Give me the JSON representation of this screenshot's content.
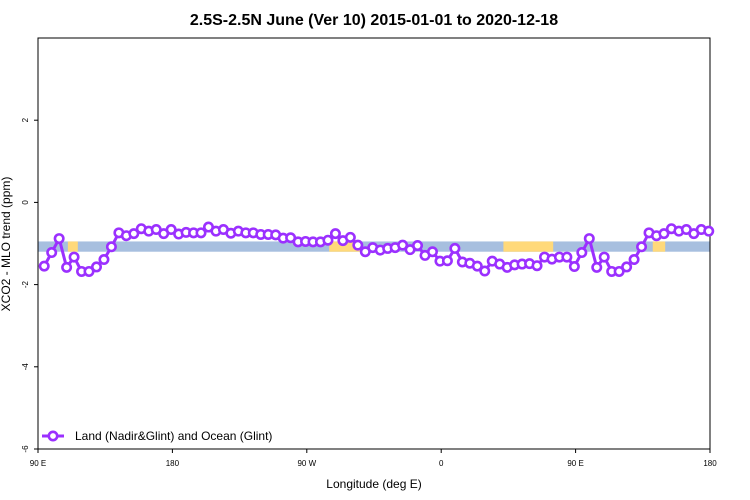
{
  "chart_data": {
    "type": "line",
    "title": "2.5S-2.5N June (Ver 10)   2015-01-01 to 2020-12-18",
    "xlabel": "Longitude (deg E)",
    "ylabel": "XCO2 - MLO trend (ppm)",
    "xlim": [
      -90,
      180
    ],
    "ylim": [
      -6,
      4
    ],
    "x_ticks": [
      {
        "value": -90,
        "label": "90 E"
      },
      {
        "value": -36,
        "label": "180"
      },
      {
        "value": 18,
        "label": "90 W"
      },
      {
        "value": 72,
        "label": "0"
      },
      {
        "value": 126,
        "label": "90 E"
      },
      {
        "value": 180,
        "label": "180"
      }
    ],
    "y_ticks": [
      {
        "value": -6,
        "label": "-6"
      },
      {
        "value": -4,
        "label": "-4"
      },
      {
        "value": -2,
        "label": "-2"
      },
      {
        "value": 0,
        "label": "0"
      },
      {
        "value": 2,
        "label": "2"
      }
    ],
    "legend": {
      "position": "bottom-left"
    },
    "grid": false,
    "colors": {
      "series": "#9B30FF",
      "ocean_band": "#A7BFDF",
      "land_band": "#FFD97A"
    },
    "background_band": {
      "y_range": [
        -1.2,
        -0.95
      ],
      "land_segments": [
        [
          -78,
          -74
        ],
        [
          27,
          40
        ],
        [
          97,
          117
        ],
        [
          157,
          162
        ]
      ]
    },
    "series": [
      {
        "name": "Land (Nadir&Glint) and Ocean (Glint)",
        "x": [
          -87.5,
          -84.5,
          -81.5,
          -78.5,
          -75.5,
          -72.5,
          -69.5,
          -66.5,
          -63.5,
          -60.5,
          -57.5,
          -54.5,
          -51.5,
          -48.5,
          -45.5,
          -42.5,
          -39.5,
          -36.5,
          -33.5,
          -30.5,
          -27.5,
          -24.5,
          -21.5,
          -18.5,
          -15.5,
          -12.5,
          -9.5,
          -6.5,
          -3.5,
          -0.5,
          2.5,
          5.5,
          8.5,
          11.5,
          14.5,
          17.5,
          20.5,
          23.5,
          26.5,
          29.5,
          32.5,
          35.5,
          38.5,
          41.5,
          44.5,
          47.5,
          50.5,
          53.5,
          56.5,
          59.5,
          62.5,
          65.5,
          68.5,
          71.5,
          74.5,
          77.5,
          80.5,
          83.5,
          86.5,
          89.5,
          92.5,
          95.5,
          98.5,
          101.5,
          104.5,
          107.5,
          110.5,
          113.5,
          116.5,
          119.5,
          122.5,
          125.5,
          128.5,
          131.5,
          134.5,
          137.5,
          140.5,
          143.5,
          146.5,
          149.5,
          152.5,
          155.5,
          158.5,
          161.5,
          164.5,
          167.5,
          170.5,
          173.5,
          176.5,
          179.5
        ],
        "y": [
          -1.55,
          -1.22,
          -0.88,
          -1.58,
          -1.33,
          -1.68,
          -1.68,
          -1.57,
          -1.39,
          -1.08,
          -0.74,
          -0.81,
          -0.76,
          -0.64,
          -0.7,
          -0.66,
          -0.76,
          -0.66,
          -0.77,
          -0.73,
          -0.74,
          -0.74,
          -0.6,
          -0.7,
          -0.66,
          -0.75,
          -0.7,
          -0.74,
          -0.74,
          -0.78,
          -0.78,
          -0.79,
          -0.87,
          -0.86,
          -0.96,
          -0.95,
          -0.96,
          -0.96,
          -0.92,
          -0.76,
          -0.93,
          -0.85,
          -1.04,
          -1.2,
          -1.1,
          -1.16,
          -1.12,
          -1.1,
          -1.04,
          -1.15,
          -1.05,
          -1.29,
          -1.2,
          -1.43,
          -1.42,
          -1.12,
          -1.45,
          -1.48,
          -1.55,
          -1.67,
          -1.43,
          -1.5,
          -1.58,
          -1.52,
          -1.5,
          -1.49,
          -1.54,
          -1.33,
          -1.38,
          -1.33,
          -1.33,
          -1.56,
          -1.22,
          -0.88,
          -1.58,
          -1.33,
          -1.68,
          -1.68,
          -1.57,
          -1.39,
          -1.08,
          -0.74,
          -0.81,
          -0.76,
          -0.64,
          -0.7,
          -0.66,
          -0.76,
          -0.66,
          -0.7
        ]
      }
    ]
  }
}
